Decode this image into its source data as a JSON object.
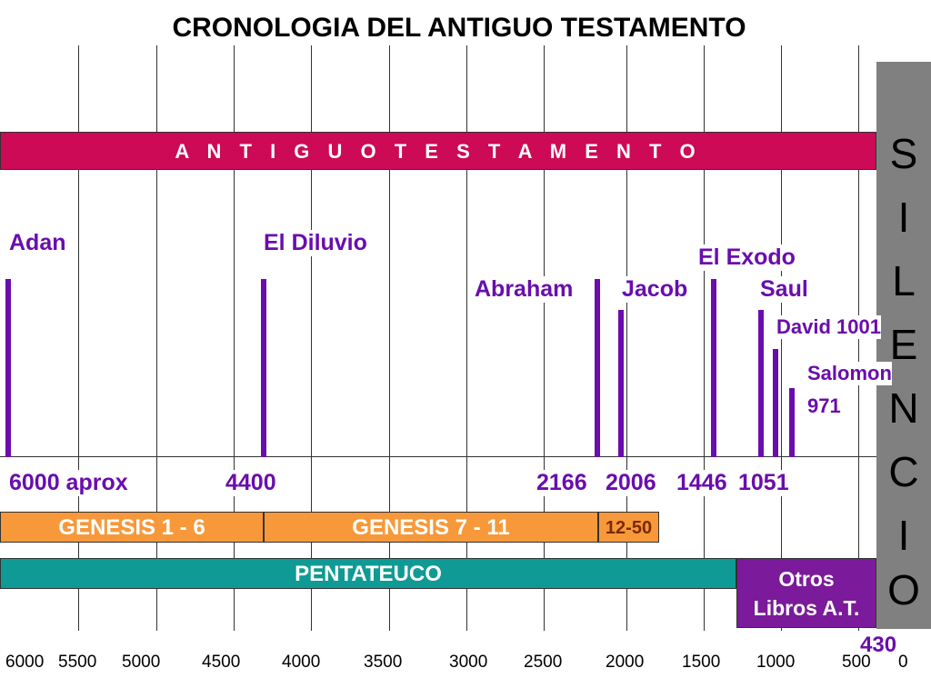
{
  "title": "CRONOLOGIA DEL ANTIGUO TESTAMENTO",
  "at_bar_label": "A N T I G U O   T E S T A M E N T O",
  "silence_letters": [
    "S",
    "I",
    "L",
    "E",
    "N",
    "C",
    "I",
    "O"
  ],
  "events": {
    "adan": "Adan",
    "diluvio": "El Diluvio",
    "abraham": "Abraham",
    "jacob": "Jacob",
    "exodo": "El Exodo",
    "saul": "Saul",
    "david": "David 1001",
    "salomon_line1": "Salomon",
    "salomon_line2": "971"
  },
  "years": {
    "adan": "6000 aprox",
    "diluvio": "4400",
    "abraham": "2166",
    "jacob": "2006",
    "exodo": "1446",
    "saul": "1051"
  },
  "sections": {
    "genesis_1_6": "GENESIS 1 - 6",
    "genesis_7_11": "GENESIS 7 - 11",
    "genesis_12_50": "12-50",
    "pentateuco": "PENTATEUCO",
    "otros_line1": "Otros",
    "otros_line2": "Libros A.T.",
    "otros_year": "430"
  },
  "axis_ticks": [
    "6000",
    "5500",
    "5000",
    "4500",
    "4000",
    "3500",
    "3000",
    "2500",
    "2000",
    "1500",
    "1000",
    "500",
    "0"
  ],
  "colors": {
    "at_bar": "#cc0a55",
    "event": "#6a0dad",
    "genesis": "#f7993a",
    "pentateuco": "#109a95",
    "otros": "#7b1a9a",
    "silence": "#808080"
  }
}
